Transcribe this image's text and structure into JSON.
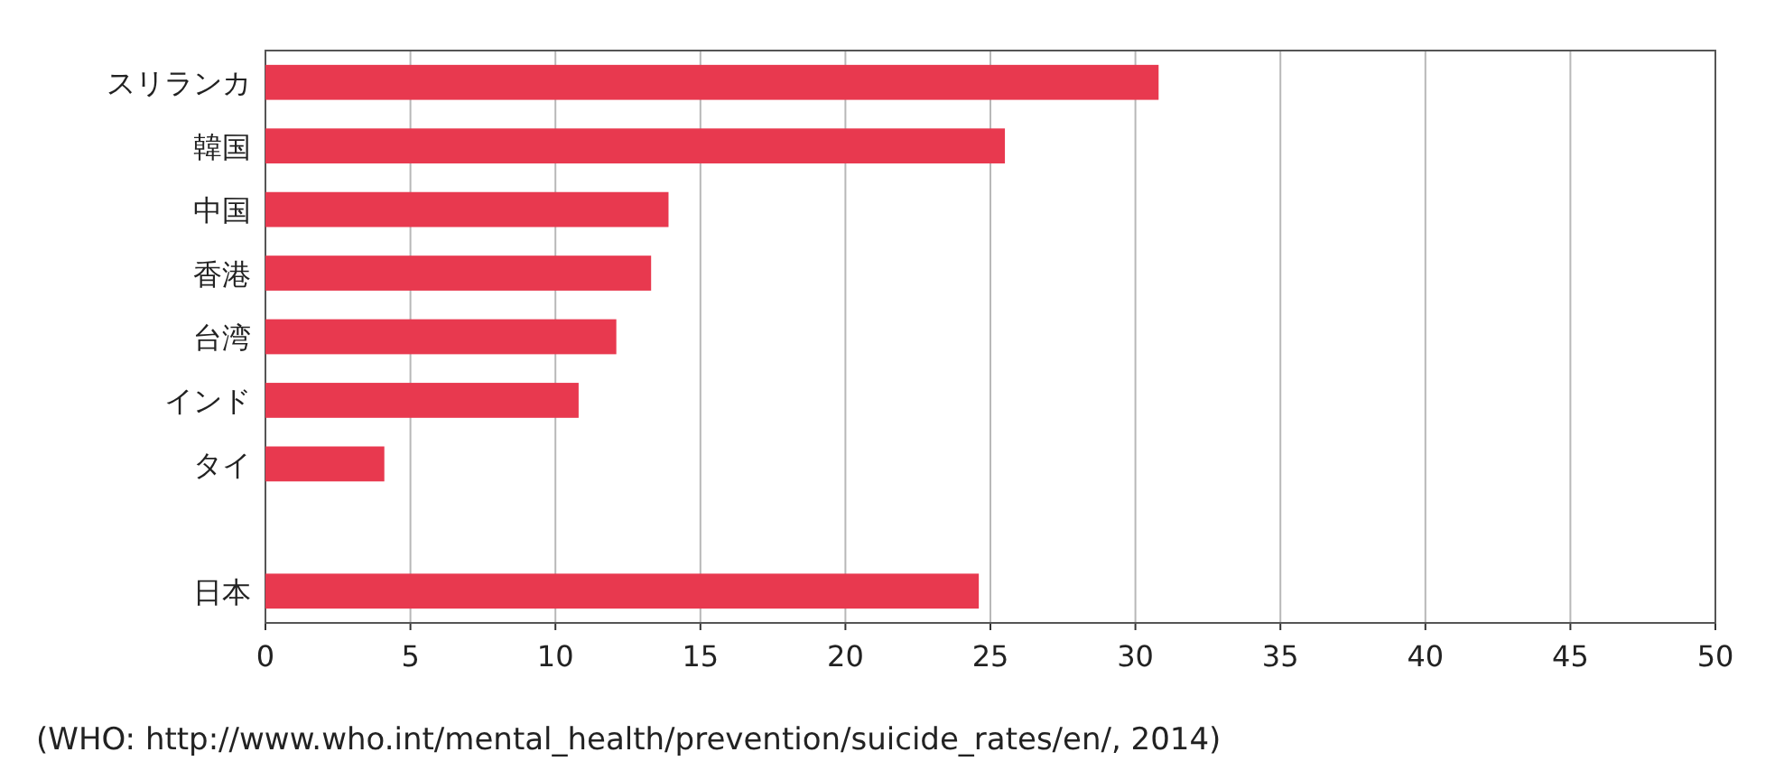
{
  "chart_data": {
    "type": "bar",
    "orientation": "horizontal",
    "categories": [
      "スリランカ",
      "韓国",
      "中国",
      "香港",
      "台湾",
      "インド",
      "タイ",
      null,
      "日本"
    ],
    "values": [
      30.8,
      25.5,
      13.9,
      13.3,
      12.1,
      10.8,
      4.1,
      null,
      24.6
    ],
    "color": "#e8394f",
    "xlim": [
      0,
      50
    ],
    "xticks": [
      0,
      5,
      10,
      15,
      20,
      25,
      30,
      35,
      40,
      45,
      50
    ],
    "grid": "x",
    "annotations": [
      "(WHO: http://www.who.int/mental_health/prevention/suicide_rates/en/, 2014)"
    ]
  }
}
